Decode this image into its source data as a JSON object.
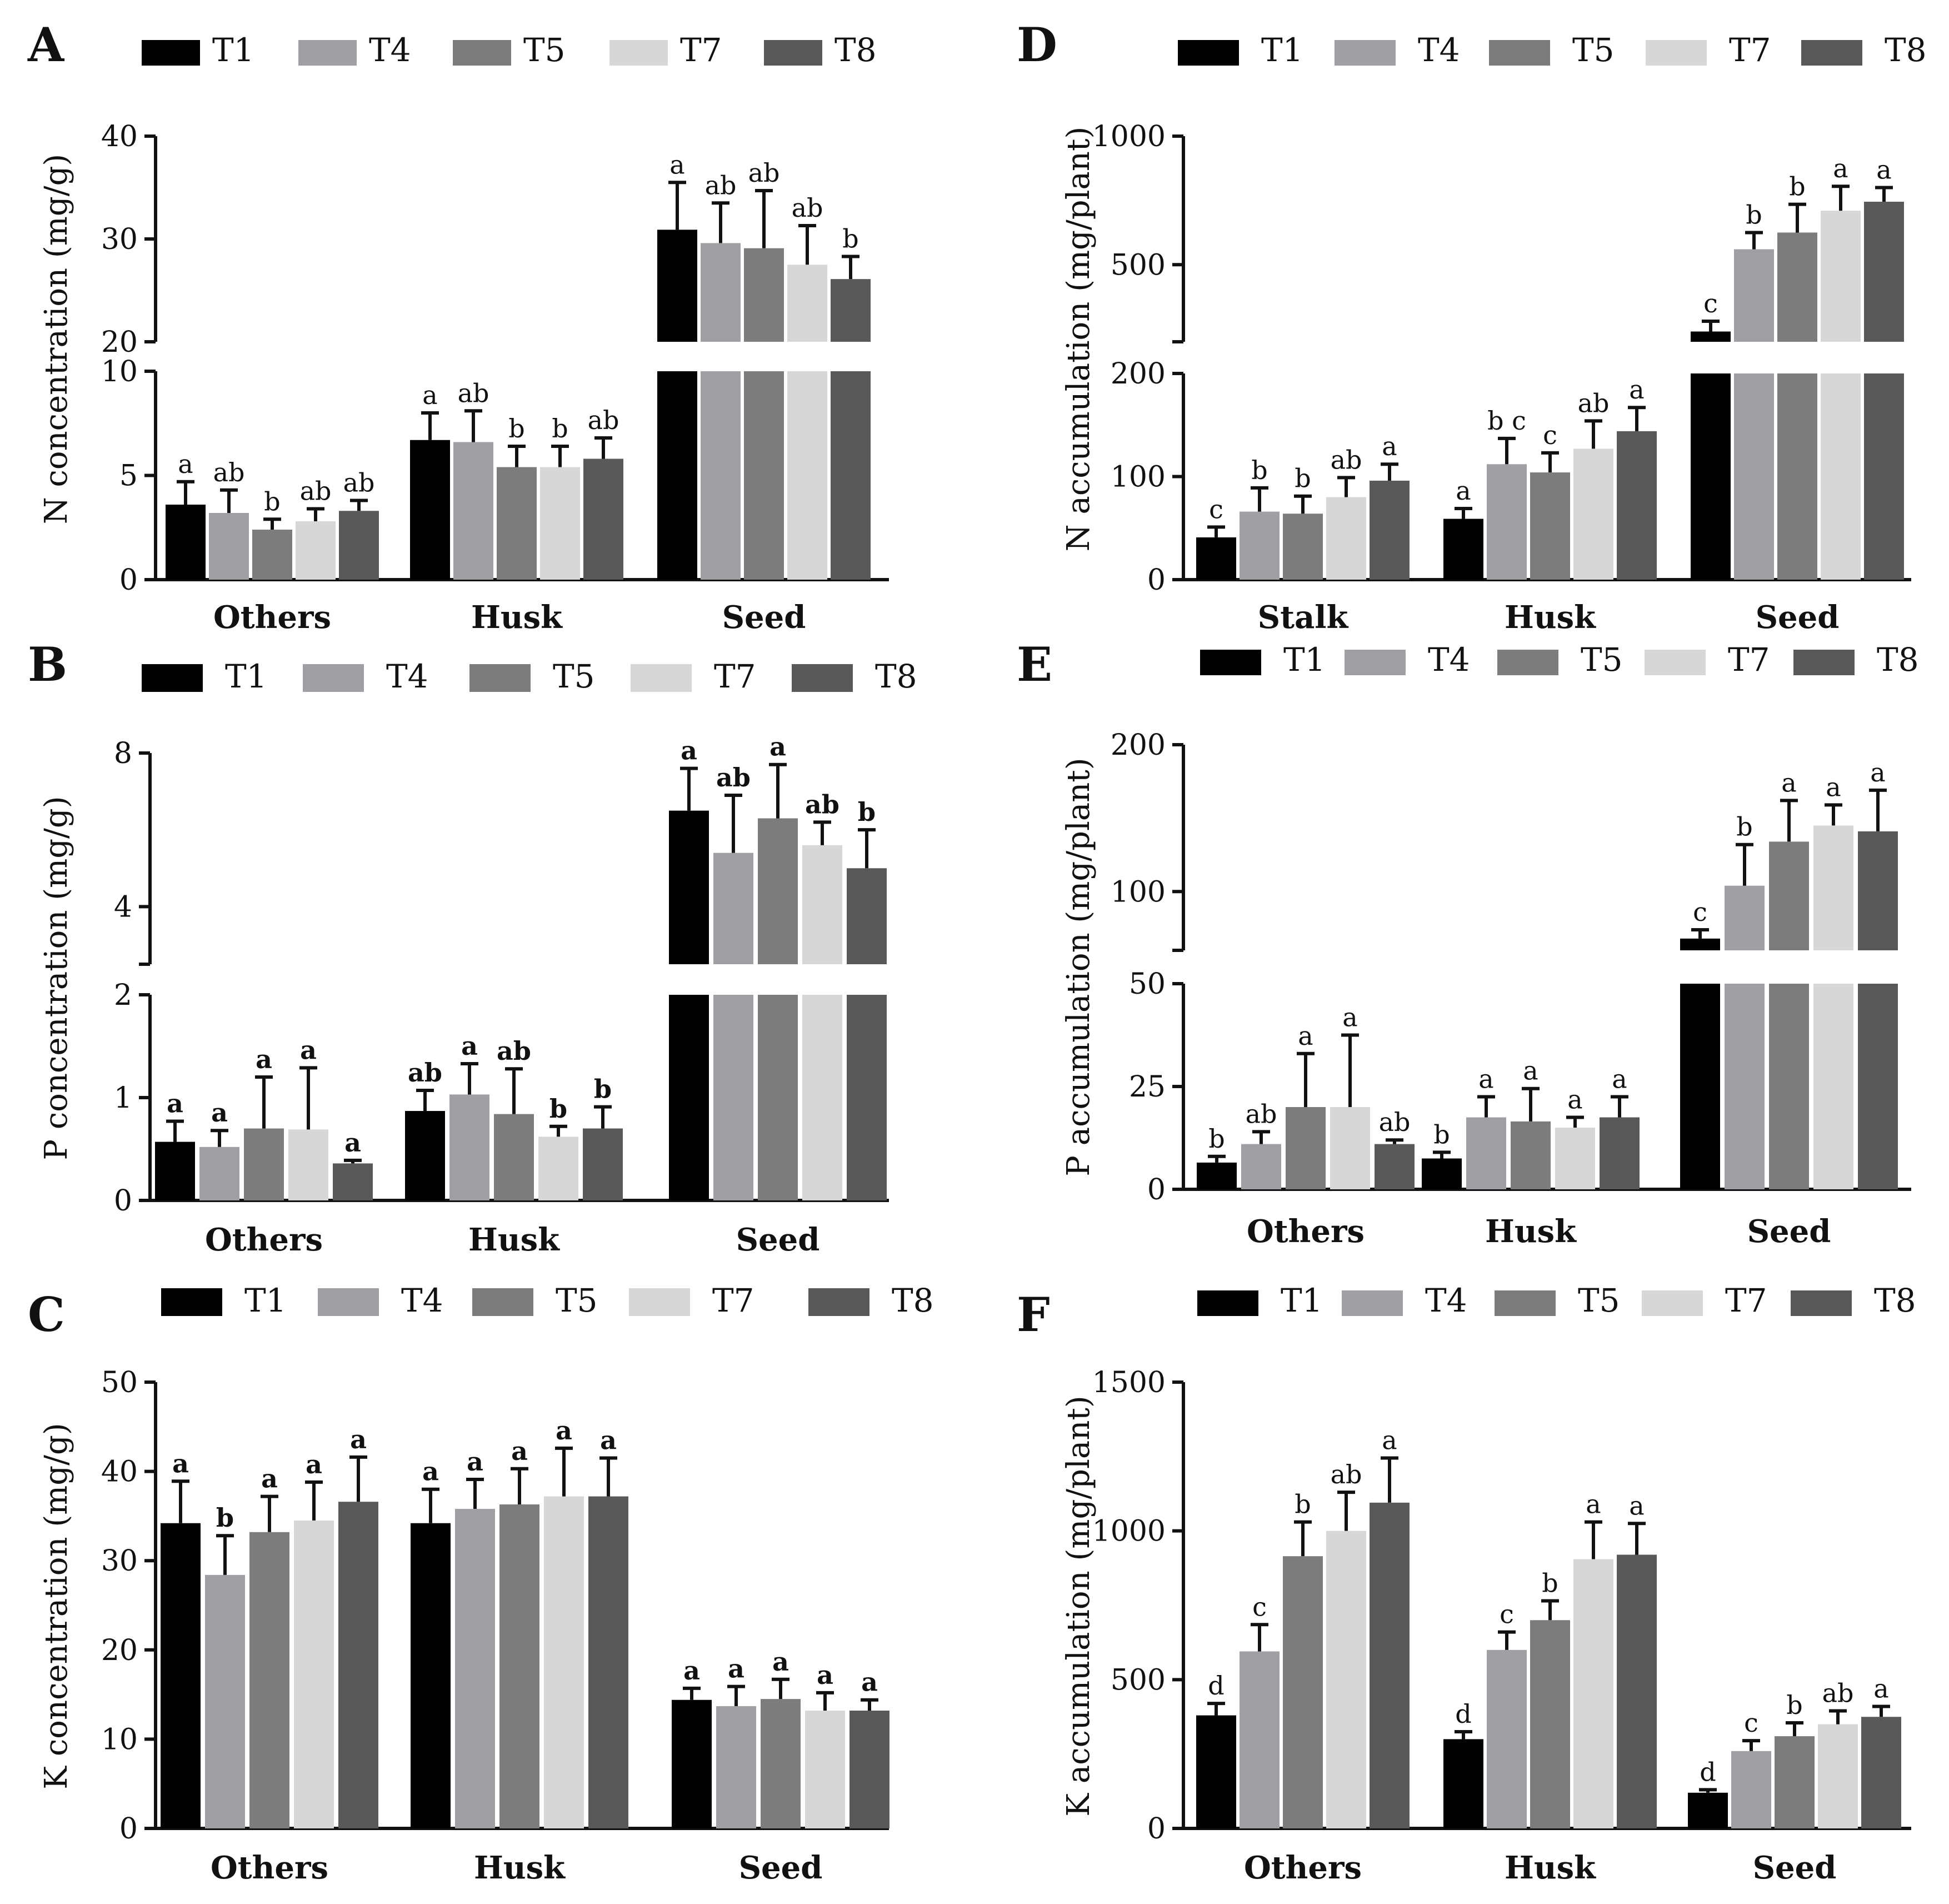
{
  "chart_data": [
    {
      "id": "A",
      "type": "bar",
      "panel_label": "A",
      "title": "",
      "xlabel": "",
      "ylabel": "N concentration (mg/g)",
      "categories": [
        "Others",
        "Husk",
        "Seed"
      ],
      "series": [
        {
          "name": "T1",
          "color": "#000000",
          "values": [
            3.6,
            6.7,
            30.9
          ],
          "errors": [
            1.1,
            1.3,
            4.6
          ],
          "labels": [
            "a",
            "a",
            "a"
          ]
        },
        {
          "name": "T4",
          "color": "#a0a0a4",
          "values": [
            3.2,
            6.6,
            29.6
          ],
          "errors": [
            1.1,
            1.5,
            3.9
          ],
          "labels": [
            "ab",
            "ab",
            "ab"
          ]
        },
        {
          "name": "T5",
          "color": "#7c7c7c",
          "values": [
            2.4,
            5.4,
            29.1
          ],
          "errors": [
            0.5,
            1.0,
            5.6
          ],
          "labels": [
            "b",
            "b",
            "ab"
          ]
        },
        {
          "name": "T7",
          "color": "#d7d7d7",
          "values": [
            2.8,
            5.4,
            27.5
          ],
          "errors": [
            0.6,
            1.0,
            3.8
          ],
          "labels": [
            "ab",
            "b",
            "ab"
          ]
        },
        {
          "name": "T8",
          "color": "#595959",
          "values": [
            3.3,
            5.8,
            26.1
          ],
          "errors": [
            0.5,
            1.0,
            2.2
          ],
          "labels": [
            "ab",
            "ab",
            "b"
          ]
        }
      ],
      "y_axis_break": {
        "lower": [
          0,
          10
        ],
        "upper": [
          20,
          40
        ]
      },
      "yticks_lower": [
        0,
        5,
        10
      ],
      "yticks_upper": [
        20,
        30,
        40
      ],
      "label_style": "regular",
      "legend_position": "top"
    },
    {
      "id": "B",
      "type": "bar",
      "panel_label": "B",
      "title": "",
      "xlabel": "",
      "ylabel": "P concentration (mg/g)",
      "categories": [
        "Others",
        "Husk",
        "Seed"
      ],
      "series": [
        {
          "name": "T1",
          "color": "#000000",
          "values": [
            0.57,
            0.87,
            6.5
          ],
          "errors": [
            0.2,
            0.2,
            1.1
          ],
          "labels": [
            "a",
            "ab",
            "a"
          ]
        },
        {
          "name": "T4",
          "color": "#a0a0a4",
          "values": [
            0.52,
            1.03,
            5.4
          ],
          "errors": [
            0.16,
            0.3,
            1.5
          ],
          "labels": [
            "a",
            "a",
            "ab"
          ]
        },
        {
          "name": "T5",
          "color": "#7c7c7c",
          "values": [
            0.7,
            0.84,
            6.3
          ],
          "errors": [
            0.5,
            0.44,
            1.4
          ],
          "labels": [
            "a",
            "ab",
            "a"
          ]
        },
        {
          "name": "T7",
          "color": "#d7d7d7",
          "values": [
            0.69,
            0.62,
            5.6
          ],
          "errors": [
            0.6,
            0.1,
            0.6
          ],
          "labels": [
            "a",
            "b",
            "ab"
          ]
        },
        {
          "name": "T8",
          "color": "#595959",
          "values": [
            0.36,
            0.7,
            5.0
          ],
          "errors": [
            0.03,
            0.21,
            1.0
          ],
          "labels": [
            "a",
            "b",
            "b"
          ]
        }
      ],
      "y_axis_break": {
        "lower": [
          0,
          2
        ],
        "upper": [
          2.5,
          8
        ]
      },
      "yticks_lower": [
        0,
        1,
        2
      ],
      "yticks_upper": [
        4,
        8
      ],
      "label_style": "bold",
      "legend_position": "top"
    },
    {
      "id": "C",
      "type": "bar",
      "panel_label": "C",
      "title": "",
      "xlabel": "",
      "ylabel": "K concentration (mg/g)",
      "categories": [
        "Others",
        "Husk",
        "Seed"
      ],
      "series": [
        {
          "name": "T1",
          "color": "#000000",
          "values": [
            34.2,
            34.2,
            14.4
          ],
          "errors": [
            4.7,
            3.8,
            1.3
          ],
          "labels": [
            "a",
            "a",
            "a"
          ]
        },
        {
          "name": "T4",
          "color": "#a0a0a4",
          "values": [
            28.4,
            35.8,
            13.7
          ],
          "errors": [
            4.4,
            3.3,
            2.2
          ],
          "labels": [
            "b",
            "a",
            "a"
          ]
        },
        {
          "name": "T5",
          "color": "#7c7c7c",
          "values": [
            33.2,
            36.3,
            14.5
          ],
          "errors": [
            4.0,
            4.0,
            2.2
          ],
          "labels": [
            "a",
            "a",
            "a"
          ]
        },
        {
          "name": "T7",
          "color": "#d7d7d7",
          "values": [
            34.5,
            37.2,
            13.2
          ],
          "errors": [
            4.3,
            5.4,
            2.0
          ],
          "labels": [
            "a",
            "a",
            "a"
          ]
        },
        {
          "name": "T8",
          "color": "#595959",
          "values": [
            36.6,
            37.2,
            13.2
          ],
          "errors": [
            5.0,
            4.3,
            1.2
          ],
          "labels": [
            "a",
            "a",
            "a"
          ]
        }
      ],
      "ylim": [
        0,
        50
      ],
      "yticks": [
        0,
        10,
        20,
        30,
        40,
        50
      ],
      "label_style": "bold",
      "legend_position": "top"
    },
    {
      "id": "D",
      "type": "bar",
      "panel_label": "D",
      "title": "",
      "xlabel": "",
      "ylabel": "N accumulation (mg/plant)",
      "categories": [
        "Stalk",
        "Husk",
        "Seed"
      ],
      "series": [
        {
          "name": "T1",
          "color": "#000000",
          "values": [
            41,
            59,
            240
          ],
          "errors": [
            10,
            10,
            40
          ],
          "labels": [
            "c",
            "a",
            "c"
          ]
        },
        {
          "name": "T4",
          "color": "#a0a0a4",
          "values": [
            66,
            112,
            560
          ],
          "errors": [
            23,
            25,
            65
          ],
          "labels": [
            "b",
            "b c",
            "b"
          ]
        },
        {
          "name": "T5",
          "color": "#7c7c7c",
          "values": [
            64,
            104,
            625
          ],
          "errors": [
            17,
            19,
            110
          ],
          "labels": [
            "b",
            "c",
            "b"
          ]
        },
        {
          "name": "T7",
          "color": "#d7d7d7",
          "values": [
            80,
            127,
            710
          ],
          "errors": [
            19,
            27,
            95
          ],
          "labels": [
            "ab",
            "ab",
            "a"
          ]
        },
        {
          "name": "T8",
          "color": "#595959",
          "values": [
            96,
            144,
            745
          ],
          "errors": [
            16,
            23,
            55
          ],
          "labels": [
            "a",
            "a",
            "a"
          ]
        }
      ],
      "y_axis_break": {
        "lower": [
          0,
          200
        ],
        "upper": [
          200,
          1000
        ]
      },
      "yticks_lower": [
        0,
        100,
        200
      ],
      "yticks_upper": [
        500,
        1000
      ],
      "label_style": "regular",
      "legend_position": "top"
    },
    {
      "id": "E",
      "type": "bar",
      "panel_label": "E",
      "title": "",
      "xlabel": "",
      "ylabel": "P accumulation (mg/plant)",
      "categories": [
        "Others",
        "Husk",
        "Seed"
      ],
      "series": [
        {
          "name": "T1",
          "color": "#000000",
          "values": [
            6.5,
            7.5,
            68
          ],
          "errors": [
            1.5,
            1.5,
            6
          ],
          "labels": [
            "b",
            "b",
            "c"
          ]
        },
        {
          "name": "T4",
          "color": "#a0a0a4",
          "values": [
            11,
            17.5,
            104
          ],
          "errors": [
            3,
            5,
            28
          ],
          "labels": [
            "ab",
            "a",
            "b"
          ]
        },
        {
          "name": "T5",
          "color": "#7c7c7c",
          "values": [
            20,
            16.5,
            134
          ],
          "errors": [
            13,
            8,
            28
          ],
          "labels": [
            "a",
            "a",
            "a"
          ]
        },
        {
          "name": "T7",
          "color": "#d7d7d7",
          "values": [
            20,
            15,
            145
          ],
          "errors": [
            17.5,
            2.5,
            14
          ],
          "labels": [
            "a",
            "a",
            "a"
          ]
        },
        {
          "name": "T8",
          "color": "#595959",
          "values": [
            11,
            17.5,
            141
          ],
          "errors": [
            1,
            5,
            28
          ],
          "labels": [
            "ab",
            "a",
            "a"
          ]
        }
      ],
      "y_axis_break": {
        "lower": [
          0,
          50
        ],
        "upper": [
          60,
          200
        ]
      },
      "yticks_lower": [
        0,
        25,
        50
      ],
      "yticks_upper": [
        100,
        200
      ],
      "label_style": "regular",
      "legend_position": "top"
    },
    {
      "id": "F",
      "type": "bar",
      "panel_label": "F",
      "title": "",
      "xlabel": "",
      "ylabel": "K accumulation (mg/plant)",
      "categories": [
        "Others",
        "Husk",
        "Seed"
      ],
      "series": [
        {
          "name": "T1",
          "color": "#000000",
          "values": [
            380,
            300,
            120
          ],
          "errors": [
            40,
            25,
            10
          ],
          "labels": [
            "d",
            "d",
            "d"
          ]
        },
        {
          "name": "T4",
          "color": "#a0a0a4",
          "values": [
            595,
            600,
            260
          ],
          "errors": [
            90,
            60,
            35
          ],
          "labels": [
            "c",
            "c",
            "c"
          ]
        },
        {
          "name": "T5",
          "color": "#7c7c7c",
          "values": [
            915,
            700,
            310
          ],
          "errors": [
            115,
            65,
            45
          ],
          "labels": [
            "b",
            "b",
            "b"
          ]
        },
        {
          "name": "T7",
          "color": "#d7d7d7",
          "values": [
            1000,
            905,
            350
          ],
          "errors": [
            130,
            125,
            45
          ],
          "labels": [
            "ab",
            "a",
            "ab"
          ]
        },
        {
          "name": "T8",
          "color": "#595959",
          "values": [
            1095,
            920,
            375
          ],
          "errors": [
            150,
            105,
            35
          ],
          "labels": [
            "a",
            "a",
            "a"
          ]
        }
      ],
      "ylim": [
        0,
        1500
      ],
      "yticks": [
        0,
        500,
        1000,
        1500
      ],
      "label_style": "regular",
      "legend_position": "top"
    }
  ]
}
